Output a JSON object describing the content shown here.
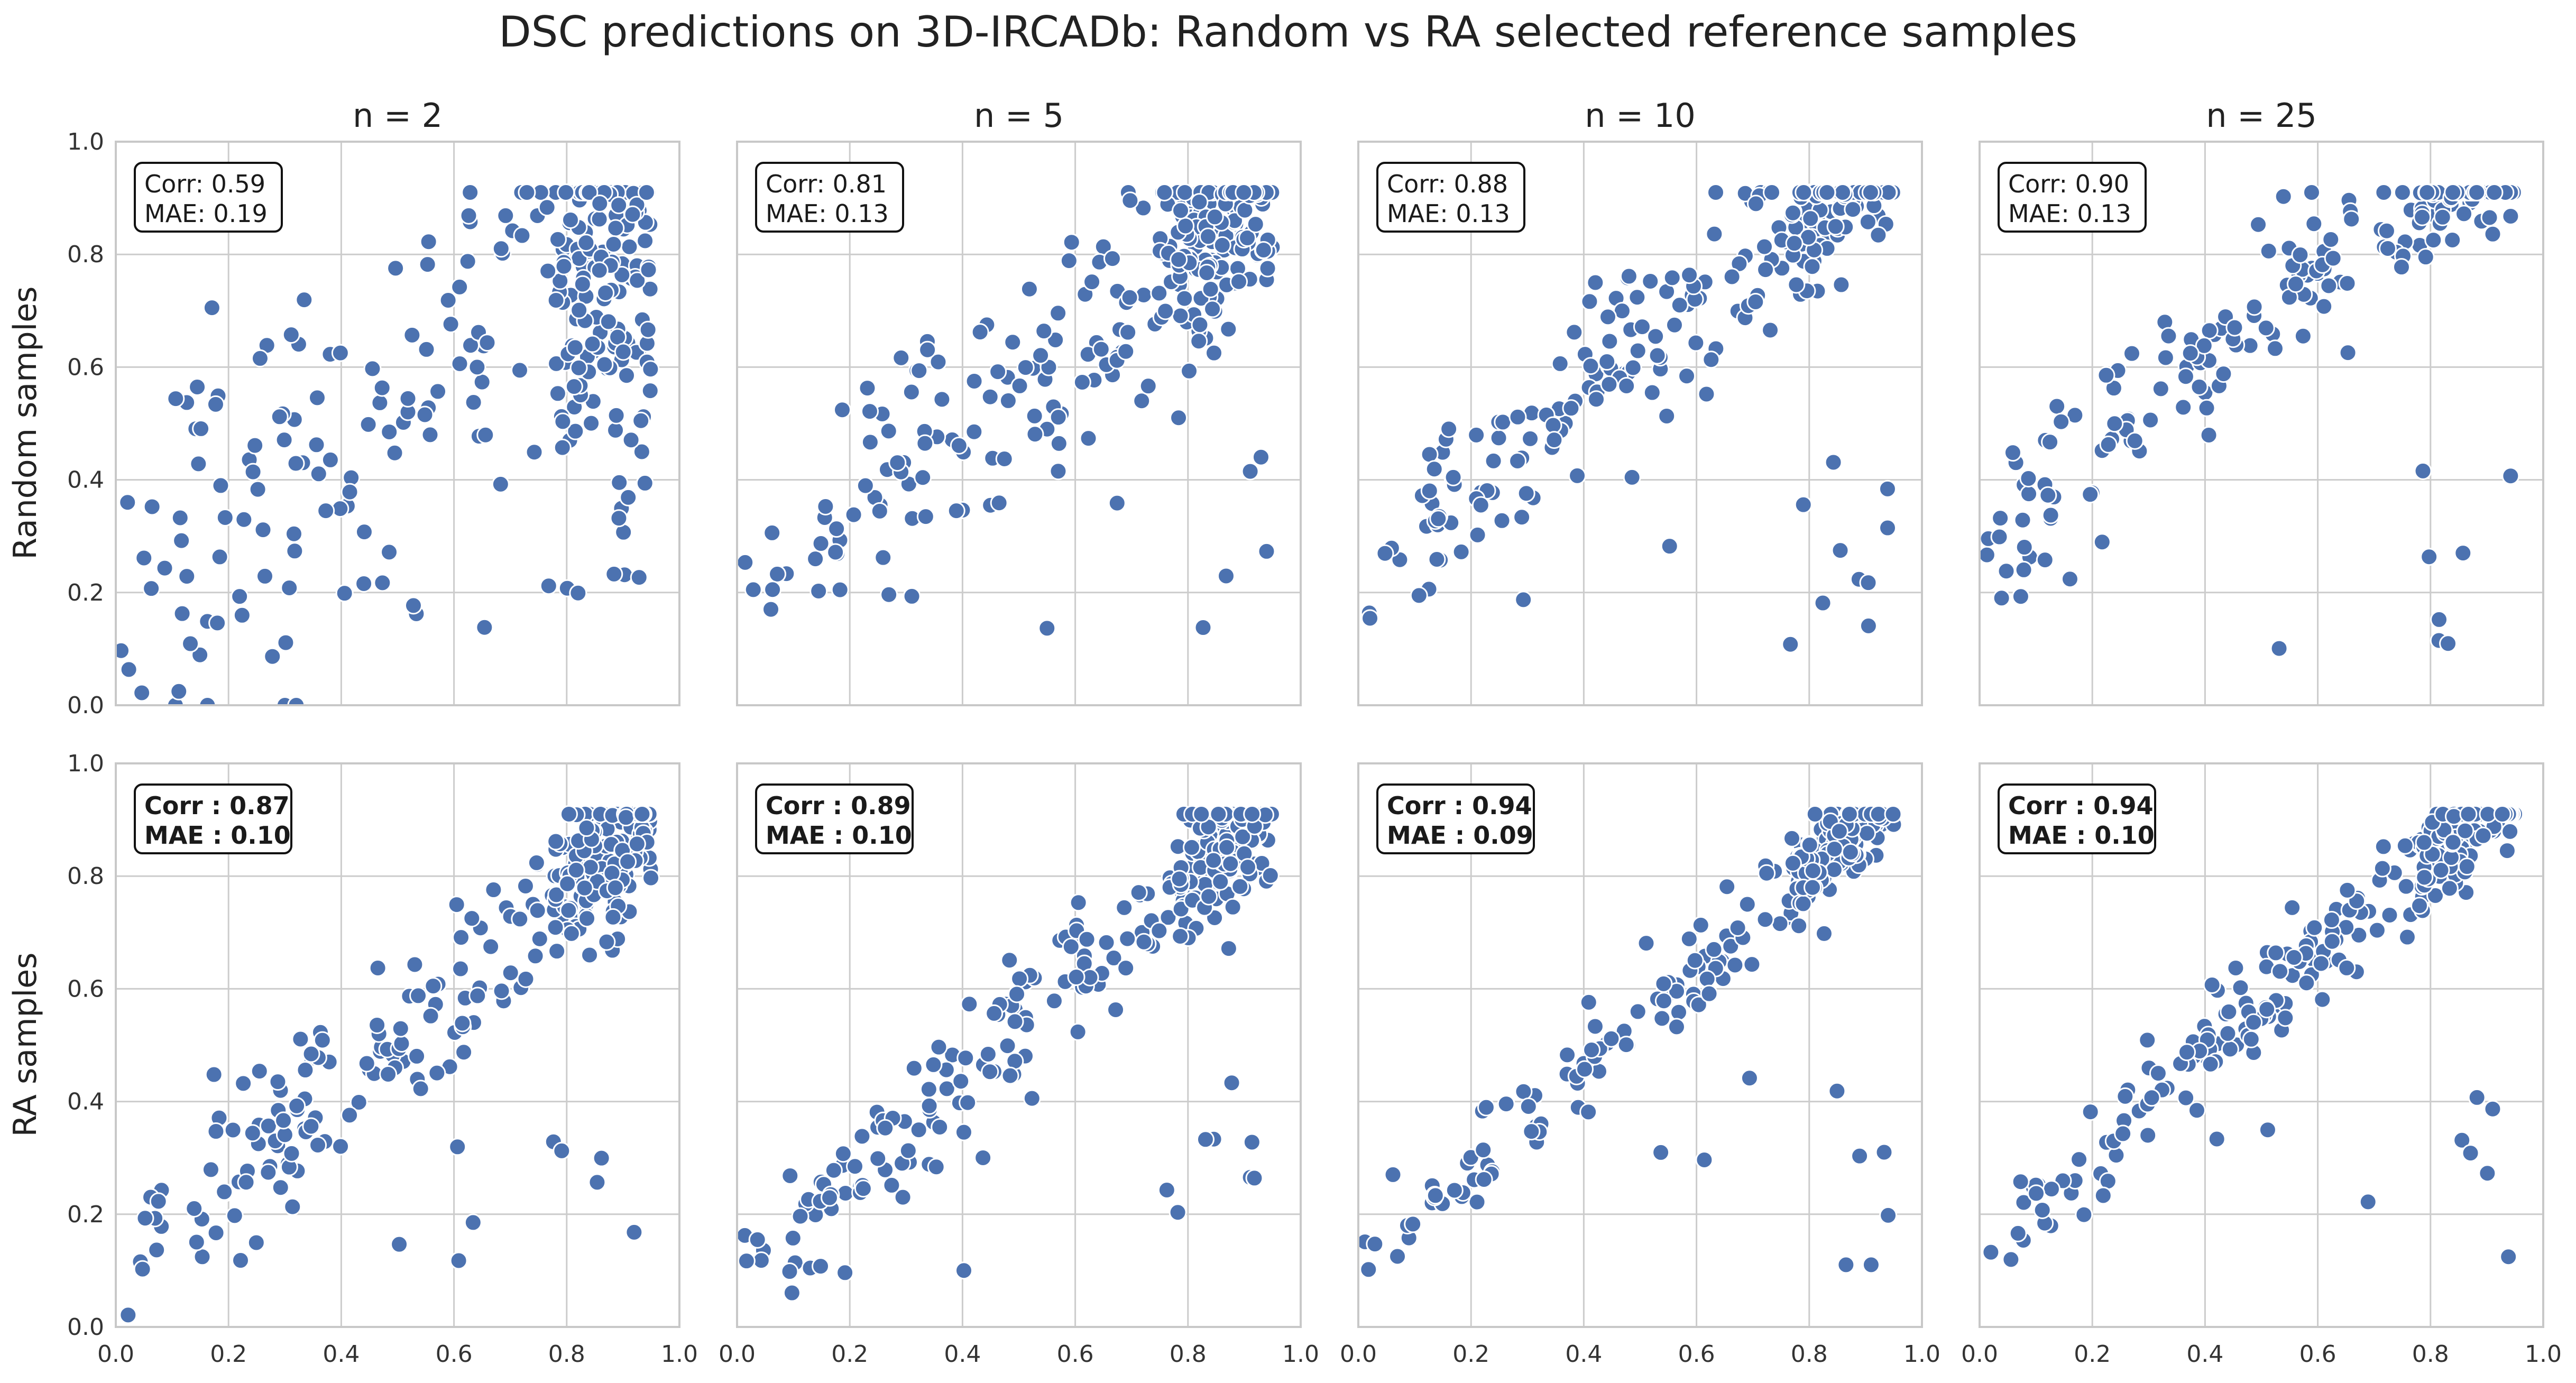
{
  "figure": {
    "title": "DSC predictions on 3D-IRCADb: Random vs RA selected reference samples",
    "col_titles": [
      "n = 2",
      "n = 5",
      "n = 10",
      "n = 25"
    ],
    "row_labels": [
      "Random samples",
      "RA samples"
    ],
    "point_color": "#4c72b0",
    "grid_color": "#cccccc",
    "spine_color": "#c8c8c8"
  },
  "chart_data": [
    {
      "type": "scatter",
      "row": "Random samples",
      "col": "n = 2",
      "corr_label": "Corr: 0.59",
      "mae_label": "MAE: 0.19",
      "bold": false,
      "corr": 0.59,
      "mae": 0.19,
      "xlim": [
        0,
        1
      ],
      "ylim": [
        0,
        1
      ],
      "n_points": 300,
      "noise": 0.19,
      "pull": 0.35,
      "shift": 0.05,
      "grid": true
    },
    {
      "type": "scatter",
      "row": "Random samples",
      "col": "n = 5",
      "corr_label": "Corr: 0.81",
      "mae_label": "MAE: 0.13",
      "bold": false,
      "corr": 0.81,
      "mae": 0.13,
      "xlim": [
        0,
        1
      ],
      "ylim": [
        0,
        1
      ],
      "n_points": 300,
      "noise": 0.1,
      "pull": 0.25,
      "shift": 0.1,
      "grid": true
    },
    {
      "type": "scatter",
      "row": "Random samples",
      "col": "n = 10",
      "corr_label": "Corr: 0.88",
      "mae_label": "MAE: 0.13",
      "bold": false,
      "corr": 0.88,
      "mae": 0.13,
      "xlim": [
        0,
        1
      ],
      "ylim": [
        0,
        1
      ],
      "n_points": 300,
      "noise": 0.07,
      "pull": 0.22,
      "shift": 0.15,
      "grid": true
    },
    {
      "type": "scatter",
      "row": "Random samples",
      "col": "n = 25",
      "corr_label": "Corr: 0.90",
      "mae_label": "MAE: 0.13",
      "bold": false,
      "corr": 0.9,
      "mae": 0.13,
      "xlim": [
        0,
        1
      ],
      "ylim": [
        0,
        1
      ],
      "n_points": 300,
      "noise": 0.06,
      "pull": 0.2,
      "shift": 0.2,
      "grid": true
    },
    {
      "type": "scatter",
      "row": "RA samples",
      "col": "n = 2",
      "corr_label": "Corr : 0.87",
      "mae_label": "MAE : 0.10",
      "bold": true,
      "corr": 0.87,
      "mae": 0.1,
      "xlim": [
        0,
        1
      ],
      "ylim": [
        0,
        1
      ],
      "n_points": 300,
      "noise": 0.07,
      "pull": 0.15,
      "shift": 0.03,
      "grid": true
    },
    {
      "type": "scatter",
      "row": "RA samples",
      "col": "n = 5",
      "corr_label": "Corr : 0.89",
      "mae_label": "MAE : 0.10",
      "bold": true,
      "corr": 0.89,
      "mae": 0.1,
      "xlim": [
        0,
        1
      ],
      "ylim": [
        0,
        1
      ],
      "n_points": 300,
      "noise": 0.06,
      "pull": 0.12,
      "shift": 0.04,
      "grid": true
    },
    {
      "type": "scatter",
      "row": "RA samples",
      "col": "n = 10",
      "corr_label": "Corr : 0.94",
      "mae_label": "MAE : 0.09",
      "bold": true,
      "corr": 0.94,
      "mae": 0.09,
      "xlim": [
        0,
        1
      ],
      "ylim": [
        0,
        1
      ],
      "n_points": 300,
      "noise": 0.045,
      "pull": 0.1,
      "shift": 0.05,
      "grid": true
    },
    {
      "type": "scatter",
      "row": "RA samples",
      "col": "n = 25",
      "corr_label": "Corr : 0.94",
      "mae_label": "MAE : 0.10",
      "bold": true,
      "corr": 0.94,
      "mae": 0.1,
      "xlim": [
        0,
        1
      ],
      "ylim": [
        0,
        1
      ],
      "n_points": 300,
      "noise": 0.045,
      "pull": 0.1,
      "shift": 0.08,
      "grid": true
    }
  ],
  "axes": {
    "x_ticks": [
      "0.0",
      "0.2",
      "0.4",
      "0.6",
      "0.8",
      "1.0"
    ],
    "y_ticks": [
      "0.0",
      "0.2",
      "0.4",
      "0.6",
      "0.8",
      "1.0"
    ]
  }
}
